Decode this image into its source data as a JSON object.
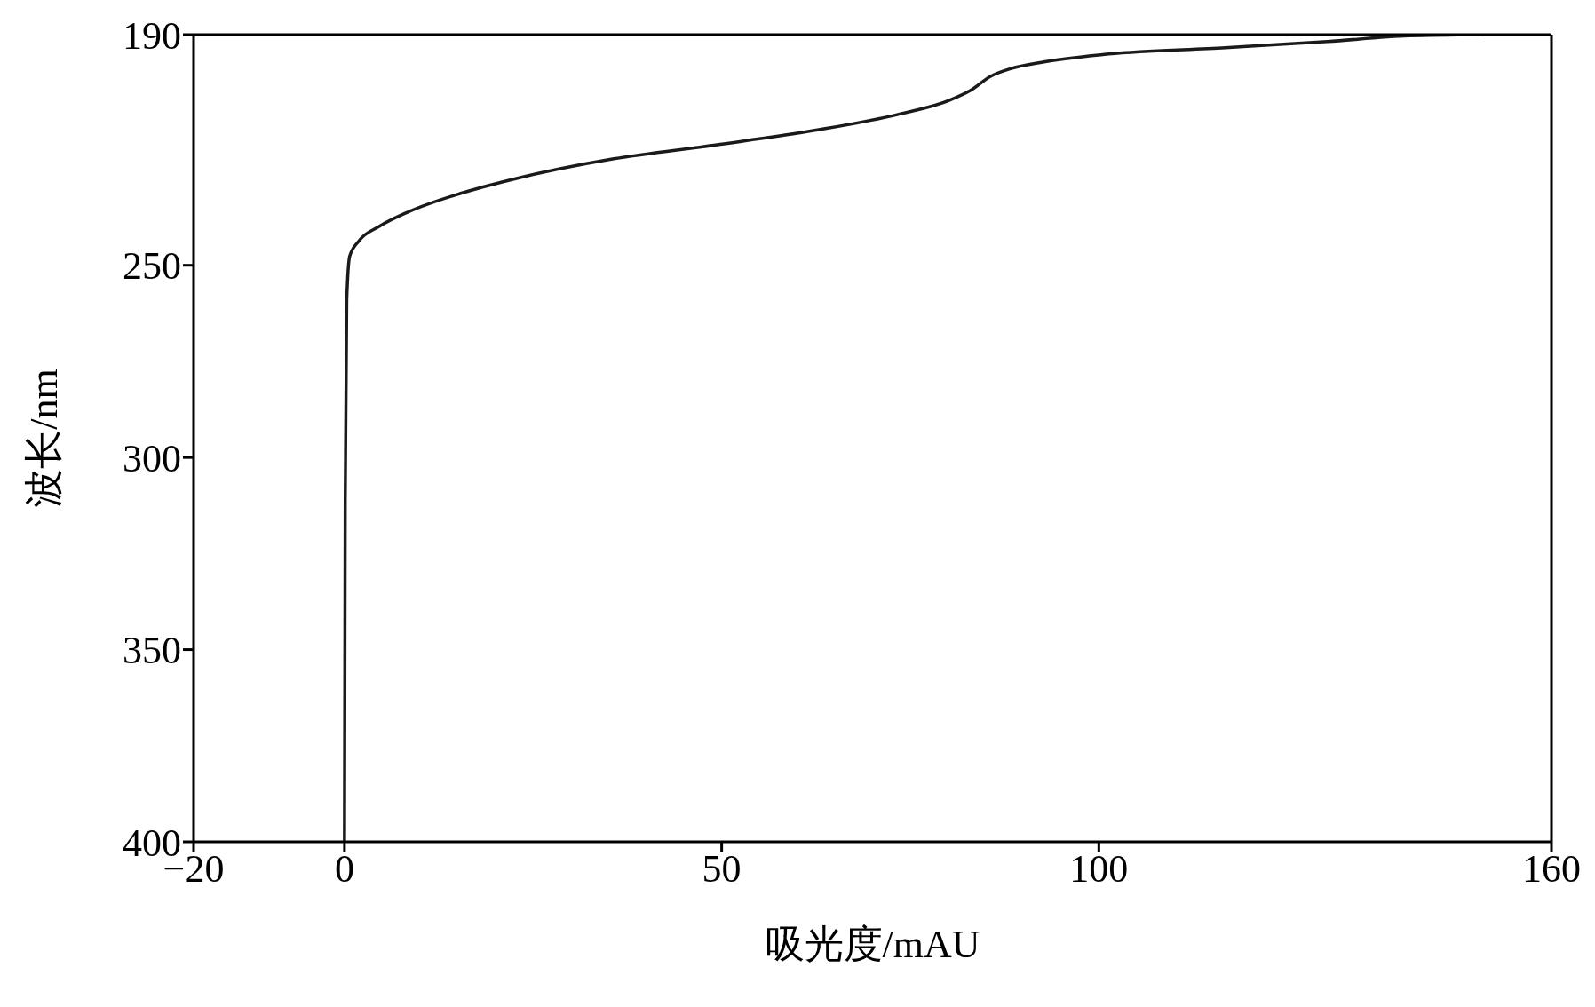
{
  "chart_data": {
    "type": "line",
    "xlabel": "吸光度/mAU",
    "ylabel": "波长/nm",
    "xlim": [
      -20,
      160
    ],
    "xticks": [
      {
        "value": -20,
        "label": "−20"
      },
      0,
      50,
      100,
      160
    ],
    "ylim": [
      400,
      190
    ],
    "yticks": [
      190,
      250,
      300,
      350,
      400
    ],
    "legend": false,
    "marker": "none",
    "line_style": "solid",
    "series": [
      {
        "color": "#1a1a1a",
        "x": [
          0,
          0.1,
          0.3,
          0.7,
          1.9,
          4.6,
          8.6,
          15.4,
          22.2,
          35.7,
          49.2,
          62.7,
          73.5,
          80.3,
          83,
          85.7,
          88.4,
          92.4,
          100.5,
          116.8,
          130.3,
          141.1,
          150.5
        ],
        "values": [
          400,
          311,
          259,
          247.6,
          243.7,
          239.9,
          236,
          231.3,
          227.7,
          222.3,
          218.7,
          214.8,
          210.7,
          207,
          204.5,
          200.8,
          198.8,
          197.2,
          195.2,
          193.4,
          191.8,
          190.3,
          190
        ]
      }
    ]
  }
}
